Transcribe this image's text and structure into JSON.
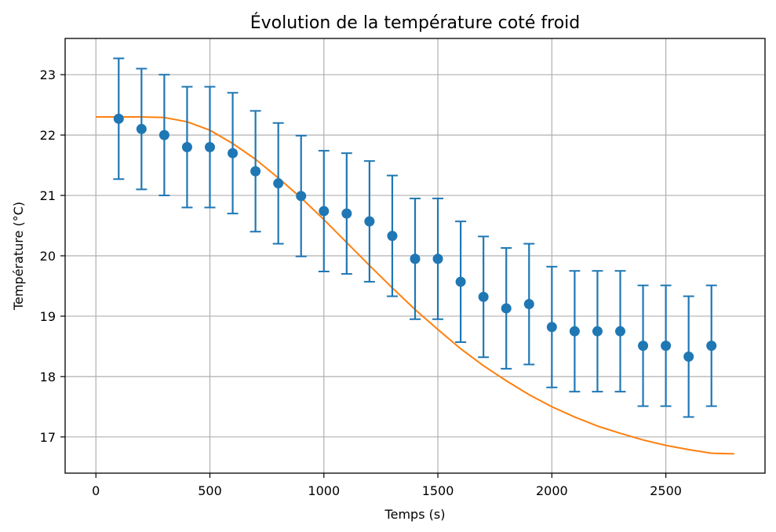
{
  "chart_data": {
    "type": "scatter",
    "title": "Évolution de la température coté froid",
    "xlabel": "Temps (s)",
    "ylabel": "Température (°C)",
    "xlim": [
      -135,
      2935
    ],
    "ylim": [
      16.4,
      23.6
    ],
    "xticks": [
      0,
      500,
      1000,
      1500,
      2000,
      2500
    ],
    "yticks": [
      17,
      18,
      19,
      20,
      21,
      22,
      23
    ],
    "grid": true,
    "colors": {
      "points": "#1f77b4",
      "fit": "#ff7f0e"
    },
    "series": [
      {
        "kind": "errorbar-points",
        "x": [
          100,
          200,
          300,
          400,
          500,
          600,
          700,
          800,
          900,
          1000,
          1100,
          1200,
          1300,
          1400,
          1500,
          1600,
          1700,
          1800,
          1900,
          2000,
          2100,
          2200,
          2300,
          2400,
          2500,
          2600,
          2700
        ],
        "y": [
          22.27,
          22.1,
          22.0,
          21.8,
          21.8,
          21.7,
          21.4,
          21.2,
          20.99,
          20.74,
          20.7,
          20.57,
          20.33,
          19.95,
          19.95,
          19.57,
          19.32,
          19.13,
          19.2,
          18.82,
          18.75,
          18.75,
          18.75,
          18.51,
          18.51,
          18.33,
          18.51
        ],
        "yerr": 1.0
      },
      {
        "kind": "line",
        "x": [
          0,
          100,
          200,
          300,
          400,
          500,
          600,
          700,
          800,
          900,
          1000,
          1100,
          1200,
          1300,
          1400,
          1500,
          1600,
          1700,
          1800,
          1900,
          2000,
          2100,
          2200,
          2300,
          2400,
          2500,
          2600,
          2700,
          2800
        ],
        "y": [
          22.3,
          22.3,
          22.3,
          22.29,
          22.22,
          22.08,
          21.86,
          21.6,
          21.29,
          20.96,
          20.6,
          20.22,
          19.84,
          19.47,
          19.11,
          18.78,
          18.46,
          18.18,
          17.93,
          17.7,
          17.5,
          17.33,
          17.18,
          17.06,
          16.95,
          16.86,
          16.79,
          16.73,
          16.72
        ]
      }
    ]
  }
}
